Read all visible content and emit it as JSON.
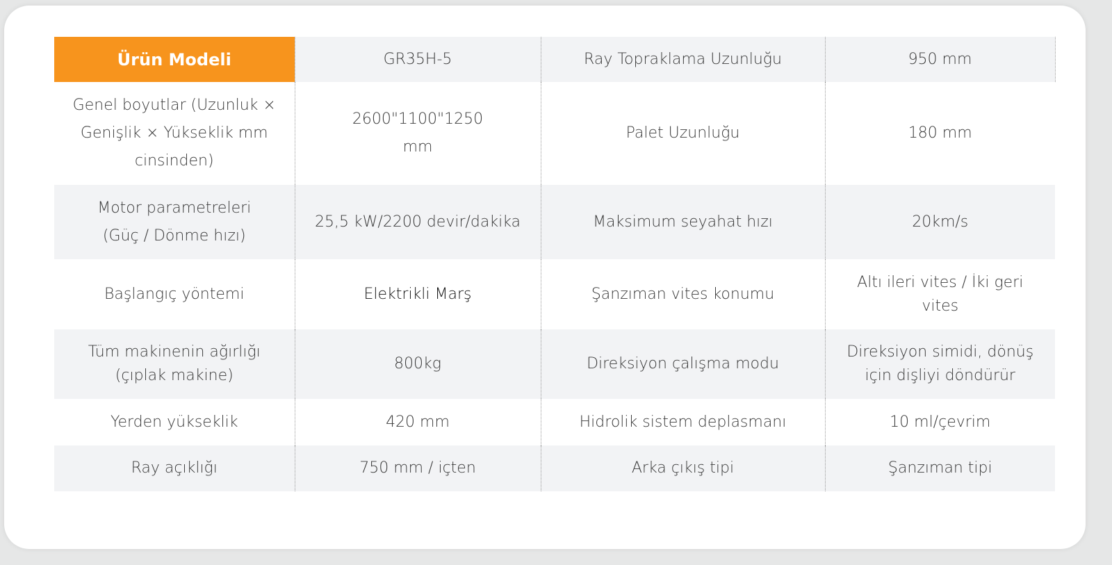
{
  "colors": {
    "accent": "#f7941d",
    "row_alt": "#f2f3f5"
  },
  "rows": [
    [
      "Ürün Modeli",
      "GR35H-5",
      "Ray Topraklama Uzunluğu",
      "950 mm"
    ],
    [
      "Genel boyutlar (Uzunluk × Genişlik × Yükseklik mm cinsinden)",
      "2600\"1100\"1250 mm",
      "Palet Uzunluğu",
      "180 mm"
    ],
    [
      "Motor parametreleri (Güç / Dönme hızı)",
      "25,5 kW/2200 devir/dakika",
      "Maksimum seyahat hızı",
      "20km/s"
    ],
    [
      "Başlangıç yöntemi",
      "Elektrikli Marş",
      "Şanzıman vites konumu",
      "Altı ileri vites / İki geri vites"
    ],
    [
      "Tüm makinenin ağırlığı (çıplak makine)",
      "800kg",
      "Direksiyon çalışma modu",
      "Direksiyon simidi, dönüş için dişliyi döndürür"
    ],
    [
      "Yerden yükseklik",
      "420 mm",
      "Hidrolik sistem deplasmanı",
      "10 ml/çevrim"
    ],
    [
      "Ray açıklığı",
      "750 mm / içten",
      "Arka çıkış tipi",
      "Şanzıman tipi"
    ]
  ]
}
